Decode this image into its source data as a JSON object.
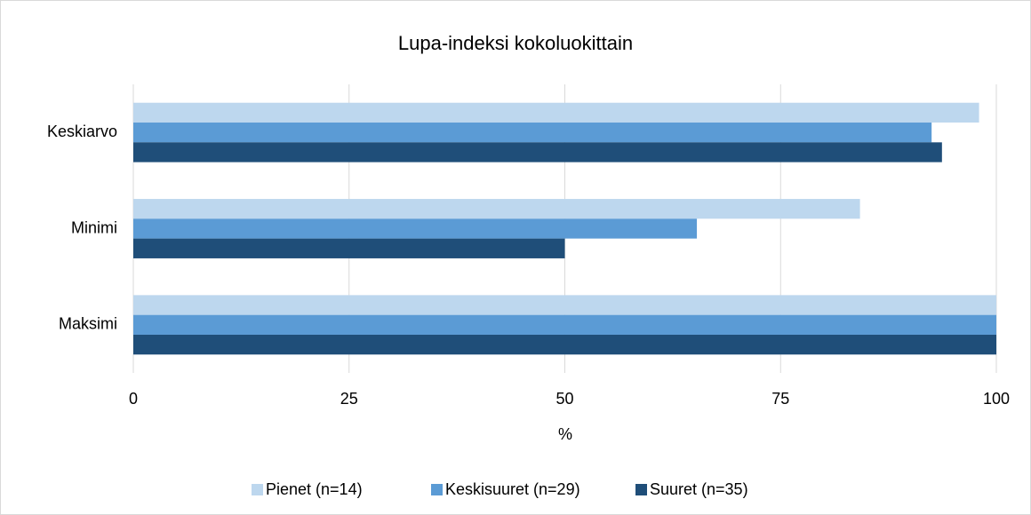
{
  "chart_data": {
    "type": "hbar",
    "title": "Lupa-indeksi kokoluokittain",
    "xlabel": "%",
    "categories": [
      "Keskiarvo",
      "Minimi",
      "Maksimi"
    ],
    "series": [
      {
        "name": "Pienet (n=14)",
        "color": "#bdd7ee",
        "values": [
          98,
          84.2,
          100
        ]
      },
      {
        "name": "Keskisuuret (n=29)",
        "color": "#5b9bd5",
        "values": [
          92.5,
          65.3,
          100
        ]
      },
      {
        "name": "Suuret (n=35)",
        "color": "#1f4e79",
        "values": [
          93.7,
          50,
          100
        ]
      }
    ],
    "xlim": [
      0,
      100
    ],
    "xticks": [
      0,
      25,
      50,
      75,
      100
    ],
    "grid": true,
    "legend": "bottom"
  }
}
